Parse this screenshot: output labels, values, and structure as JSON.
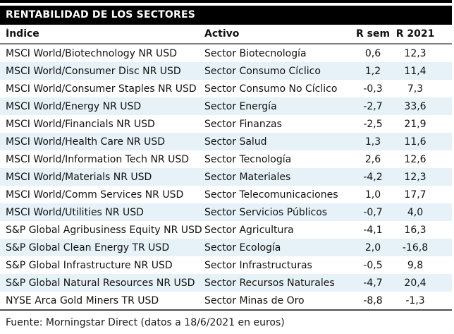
{
  "title": "RENTABILIDAD DE LOS SECTORES",
  "table": {
    "columns": [
      "Índice",
      "Activo",
      "R sem",
      "R 2021"
    ],
    "rows": [
      {
        "indice": "MSCI World/Biotechnology NR USD",
        "activo": "Sector Biotecnología",
        "r_sem": "0,6",
        "r_2021": "12,3"
      },
      {
        "indice": "MSCI World/Consumer Disc NR USD",
        "activo": "Sector Consumo Cíclico",
        "r_sem": "1,2",
        "r_2021": "11,4"
      },
      {
        "indice": "MSCI World/Consumer Staples NR USD",
        "activo": "Sector Consumo No Cíclico",
        "r_sem": "-0,3",
        "r_2021": "7,3"
      },
      {
        "indice": "MSCI World/Energy NR USD",
        "activo": "Sector Energía",
        "r_sem": "-2,7",
        "r_2021": "33,6"
      },
      {
        "indice": "MSCI World/Financials NR USD",
        "activo": "Sector Finanzas",
        "r_sem": "-2,5",
        "r_2021": "21,9"
      },
      {
        "indice": "MSCI World/Health Care NR USD",
        "activo": "Sector Salud",
        "r_sem": "1,3",
        "r_2021": "11,6"
      },
      {
        "indice": "MSCI World/Information Tech NR USD",
        "activo": "Sector Tecnología",
        "r_sem": "2,6",
        "r_2021": "12,6"
      },
      {
        "indice": "MSCI World/Materials NR USD",
        "activo": "Sector Materiales",
        "r_sem": "-4,2",
        "r_2021": "12,3"
      },
      {
        "indice": "MSCI World/Comm Services NR USD",
        "activo": "Sector Telecomunicaciones",
        "r_sem": "1,0",
        "r_2021": "17,7"
      },
      {
        "indice": "MSCI World/Utilities NR USD",
        "activo": "Sector Servicios Públicos",
        "r_sem": "-0,7",
        "r_2021": "4,0"
      },
      {
        "indice": "S&P Global Agribusiness Equity NR USD",
        "activo": "Sector Agricultura",
        "r_sem": "-4,1",
        "r_2021": "16,3"
      },
      {
        "indice": "S&P Global Clean Energy TR USD",
        "activo": "Sector Ecología",
        "r_sem": "2,0",
        "r_2021": "-16,8"
      },
      {
        "indice": "S&P Global Infrastructure NR USD",
        "activo": "Sector Infrastructuras",
        "r_sem": "-0,5",
        "r_2021": "9,8"
      },
      {
        "indice": "S&P Global Natural Resources NR USD",
        "activo": "Sector Recursos Naturales",
        "r_sem": "-4,7",
        "r_2021": "20,4"
      },
      {
        "indice": "NYSE Arca Gold Miners TR USD",
        "activo": "Sector Minas de Oro",
        "r_sem": "-8,8",
        "r_2021": "-1,3"
      }
    ]
  },
  "footer": "Fuente: Morningstar Direct (datos a 18/6/2021 en euros)",
  "colors": {
    "title_bg": "#000000",
    "title_text": "#ffffff",
    "alt_row_bg": "#e6f2f7",
    "header_rule": "#7f7f7f",
    "bottom_rule": "#4d4d4d",
    "text": "#111111"
  }
}
